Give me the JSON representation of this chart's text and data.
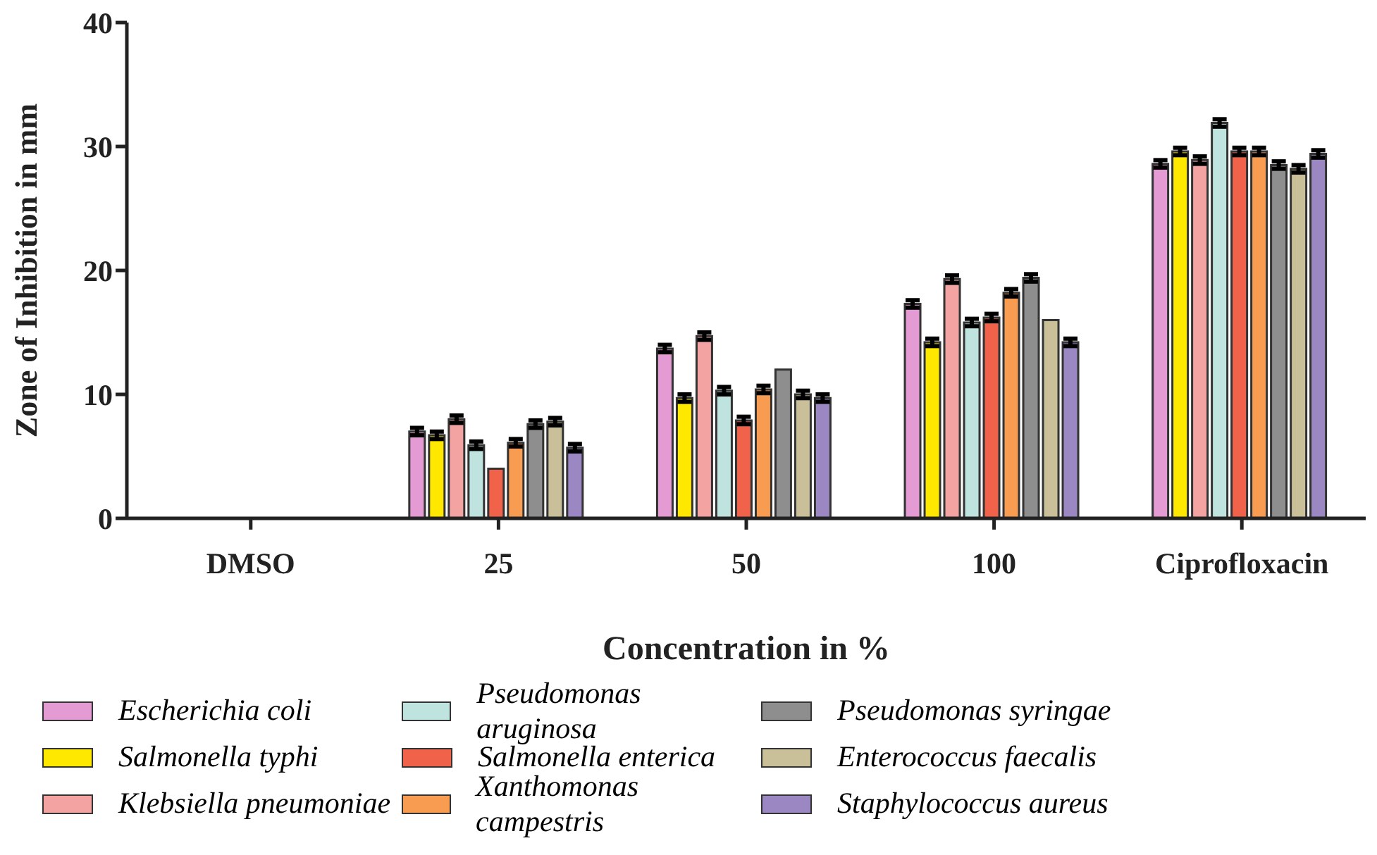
{
  "chart_data": {
    "type": "bar",
    "xlabel": "Concentration in  %",
    "ylabel": "Zone of Inhibition in mm",
    "categories": [
      "DMSO",
      "25",
      "50",
      "100",
      "Ciprofloxacin"
    ],
    "ylim": [
      0,
      40
    ],
    "yticks": [
      0,
      10,
      20,
      30,
      40
    ],
    "legend": "bottom",
    "series": [
      {
        "name": "Escherichia coli",
        "color": "#e49ad2",
        "values": [
          0,
          7,
          13.7,
          17.3,
          28.6
        ],
        "errors": [
          null,
          0.3,
          0.3,
          0.3,
          0.3
        ]
      },
      {
        "name": "Salmonella typhi",
        "color": "#ffe800",
        "values": [
          0,
          6.7,
          9.7,
          14.2,
          29.6
        ],
        "errors": [
          null,
          0.3,
          0.3,
          0.3,
          0.3
        ]
      },
      {
        "name": "Klebsiella pneumoniae",
        "color": "#f4a3a3",
        "values": [
          0,
          8,
          14.7,
          19.3,
          28.9
        ],
        "errors": [
          null,
          0.3,
          0.3,
          0.3,
          0.3
        ]
      },
      {
        "name": "Pseudomonas aruginosa",
        "color": "#bfe3df",
        "values": [
          0,
          5.9,
          10.3,
          15.8,
          31.9
        ],
        "errors": [
          null,
          0.3,
          0.3,
          0.3,
          0.3
        ]
      },
      {
        "name": "Salmonella enterica",
        "color": "#f0624a",
        "values": [
          0,
          4,
          7.9,
          16.2,
          29.6
        ],
        "errors": [
          null,
          null,
          0.3,
          0.3,
          0.3
        ]
      },
      {
        "name": "Xanthomonas campestris",
        "color": "#f89c52",
        "values": [
          0,
          6.1,
          10.4,
          18.2,
          29.6
        ],
        "errors": [
          null,
          0.3,
          0.3,
          0.3,
          0.3
        ]
      },
      {
        "name": "Pseudomonas syringae",
        "color": "#8e8e8e",
        "values": [
          0,
          7.6,
          12,
          19.4,
          28.5
        ],
        "errors": [
          null,
          0.3,
          null,
          0.3,
          0.3
        ]
      },
      {
        "name": "Enterococcus faecalis",
        "color": "#c9c09a",
        "values": [
          0,
          7.8,
          10,
          16,
          28.2
        ],
        "errors": [
          null,
          0.3,
          0.3,
          null,
          0.3
        ]
      },
      {
        "name": "Staphylococcus aureus",
        "color": "#9b87c1",
        "values": [
          0,
          5.7,
          9.7,
          14.2,
          29.4
        ],
        "errors": [
          null,
          0.3,
          0.3,
          0.3,
          0.3
        ]
      }
    ]
  }
}
